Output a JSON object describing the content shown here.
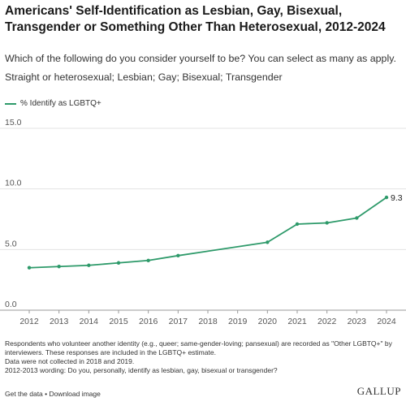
{
  "header": {
    "title": "Americans' Self-Identification as Lesbian, Gay, Bisexual, Transgender or Something Other Than Heterosexual, 2012-2024",
    "subtitle": "Which of the following do you consider yourself to be? You can select as many as apply.",
    "subtitle2": "Straight or heterosexual; Lesbian; Gay; Bisexual; Transgender"
  },
  "legend": {
    "label": "% Identify as LGBTQ+"
  },
  "colors": {
    "series": "#2e9a6a",
    "grid": "#e3e3e3",
    "axis": "#9a9a9a"
  },
  "chart_data": {
    "type": "line",
    "series": [
      {
        "name": "% Identify as LGBTQ+",
        "x": [
          2012,
          2013,
          2014,
          2015,
          2016,
          2017,
          2020,
          2021,
          2022,
          2023,
          2024
        ],
        "values": [
          3.5,
          3.6,
          3.7,
          3.9,
          4.1,
          4.5,
          5.6,
          7.1,
          7.2,
          7.6,
          9.3
        ]
      }
    ],
    "x_ticks": [
      "2012",
      "2013",
      "2014",
      "2015",
      "2016",
      "2017",
      "2018",
      "2019",
      "2020",
      "2021",
      "2022",
      "2023",
      "2024"
    ],
    "y_ticks": [
      "0.0",
      "5.0",
      "10.0",
      "15.0"
    ],
    "xlim": [
      2012,
      2024
    ],
    "ylim": [
      0,
      15
    ],
    "grid": true,
    "end_label": "9.3"
  },
  "notes": [
    "Respondents who volunteer another identity (e.g., queer; same-gender-loving; pansexual) are recorded as \"Other LGBTQ+\" by interviewers. These responses are included in the LGBTQ+ estimate.",
    "Data were not collected in 2018 and 2019.",
    "2012-2013 wording: Do you, personally, identify as lesbian, gay, bisexual or transgender?"
  ],
  "footer": {
    "get_data": "Get the data",
    "separator": "•",
    "download": "Download image",
    "brand": "GALLUP"
  }
}
